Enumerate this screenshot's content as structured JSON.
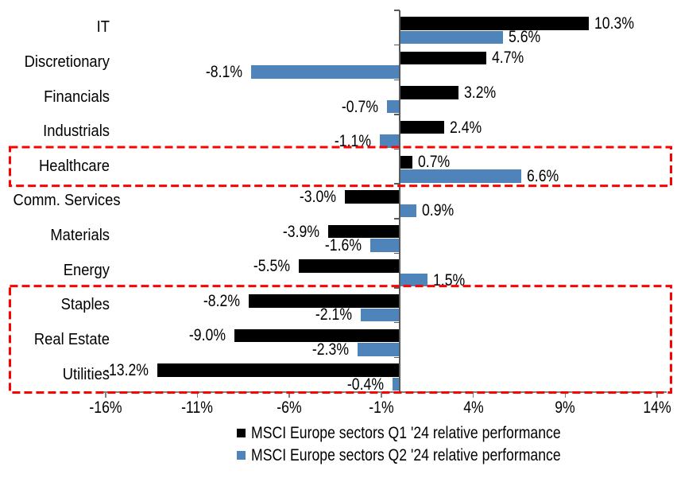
{
  "chart_data": {
    "type": "bar",
    "orientation": "horizontal",
    "title": "",
    "xlabel": "",
    "ylabel": "",
    "categories": [
      "IT",
      "Discretionary",
      "Financials",
      "Industrials",
      "Healthcare",
      "Comm. Services",
      "Materials",
      "Energy",
      "Staples",
      "Real Estate",
      "Utilities"
    ],
    "series": [
      {
        "name": "MSCI Europe sectors Q1 '24 relative performance",
        "color": "#000000",
        "values": [
          10.3,
          4.7,
          3.2,
          2.4,
          0.7,
          -3.0,
          -3.9,
          -5.5,
          -8.2,
          -9.0,
          -13.2
        ]
      },
      {
        "name": "MSCI Europe sectors Q2 '24 relative performance",
        "color": "#4E84BA",
        "values": [
          5.6,
          -8.1,
          -0.7,
          -1.1,
          6.6,
          0.9,
          -1.6,
          1.5,
          -2.1,
          -2.3,
          -0.4
        ]
      }
    ],
    "x_axis": {
      "tick_labels": [
        "-16%",
        "-11%",
        "-6%",
        "-1%",
        "4%",
        "9%",
        "14%"
      ],
      "tick_values": [
        -16,
        -11,
        -6,
        -1,
        4,
        9,
        14
      ],
      "min": -16.5,
      "max": 14.5,
      "grid": false
    },
    "value_label_format": "one-decimal-percent",
    "legend_position": "bottom",
    "axis_color": "#808080",
    "category_axis_color": "#595959",
    "highlight_boxes": [
      {
        "name": "healthcare-highlight",
        "start_row": 4,
        "end_row": 4,
        "color": "#FF0000",
        "style": "dashed"
      },
      {
        "name": "defensive-sectors-highlight",
        "start_row": 8,
        "end_row": 10,
        "color": "#FF0000",
        "style": "dashed"
      }
    ]
  }
}
